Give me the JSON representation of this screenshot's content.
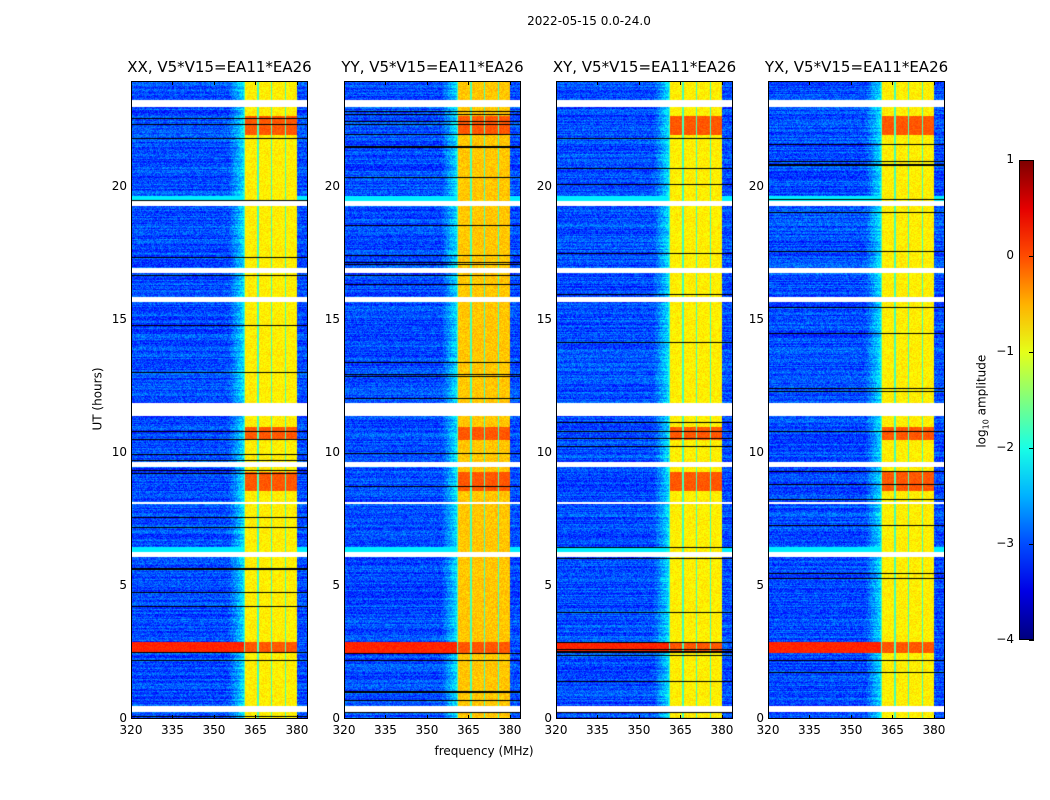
{
  "chart_data": {
    "type": "heatmap",
    "title": "2022-05-15 0.0-24.0",
    "xlabel": "frequency (MHz)",
    "ylabel": "UT (hours)",
    "xlim": [
      320,
      384
    ],
    "ylim": [
      0,
      24
    ],
    "xticks": [
      "320",
      "335",
      "350",
      "365",
      "380"
    ],
    "yticks": [
      "0",
      "5",
      "10",
      "15",
      "20"
    ],
    "panels": [
      {
        "title": "XX, V5*V15=EA11*EA26"
      },
      {
        "title": "YY, V5*V15=EA11*EA26"
      },
      {
        "title": "XY, V5*V15=EA11*EA26"
      },
      {
        "title": "YX, V5*V15=EA11*EA26"
      }
    ],
    "colorbar": {
      "label": "log10 amplitude",
      "label_main": "log",
      "label_sub": "10",
      "label_rest": " amplitude",
      "colormap": "jet",
      "range": [
        -4,
        1
      ],
      "ticks": [
        "1",
        "0",
        "−1",
        "−2",
        "−3",
        "−4"
      ]
    },
    "background_level": -3.0,
    "rfi_band_mhz": [
      360.5,
      380
    ],
    "rfi_band_level": -0.8,
    "flagged_hours": [
      [
        23.05,
        23.3
      ],
      [
        19.3,
        19.5
      ],
      [
        16.8,
        17.0
      ],
      [
        15.7,
        15.9
      ],
      [
        11.4,
        11.9
      ],
      [
        9.5,
        9.7
      ],
      [
        8.1,
        8.2
      ],
      [
        6.1,
        6.3
      ],
      [
        0.3,
        0.5
      ]
    ],
    "strong_hours": [
      [
        2.5,
        2.9
      ],
      [
        10.5,
        11.0
      ],
      [
        8.6,
        9.3
      ],
      [
        22.0,
        22.7
      ]
    ]
  }
}
